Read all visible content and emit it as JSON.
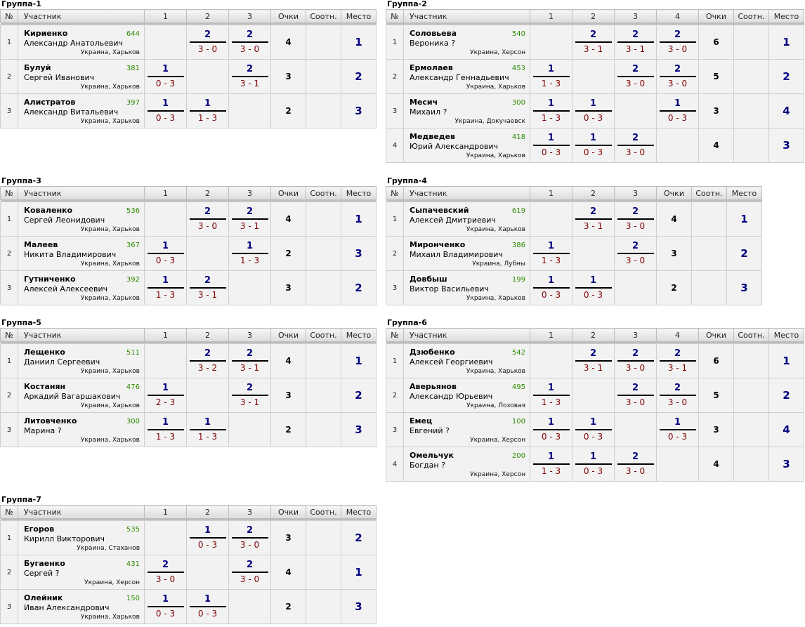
{
  "headers": {
    "num": "№",
    "participant": "Участник",
    "points": "Очки",
    "ratio": "Соотн.",
    "place": "Место"
  },
  "groups": [
    {
      "title": "Группа-1",
      "cols": [
        "1",
        "2",
        "3"
      ],
      "players": [
        {
          "num": "1",
          "last": "Кириенко",
          "first": "Александр Анатольевич",
          "rating": "644",
          "location": "Украина, Харьков",
          "results": [
            null,
            {
              "pts": "2",
              "score": "3 - 0"
            },
            {
              "pts": "2",
              "score": "3 - 0"
            }
          ],
          "points": "4",
          "place": "1"
        },
        {
          "num": "2",
          "last": "Булуй",
          "first": "Сергей Иванович",
          "rating": "381",
          "location": "Украина, Харьков",
          "results": [
            {
              "pts": "1",
              "score": "0 - 3"
            },
            null,
            {
              "pts": "2",
              "score": "3 - 1"
            }
          ],
          "points": "3",
          "place": "2"
        },
        {
          "num": "3",
          "last": "Алистратов",
          "first": "Александр Витальевич",
          "rating": "397",
          "location": "Украина, Харьков",
          "results": [
            {
              "pts": "1",
              "score": "0 - 3"
            },
            {
              "pts": "1",
              "score": "1 - 3"
            },
            null
          ],
          "points": "2",
          "place": "3"
        }
      ]
    },
    {
      "title": "Группа-2",
      "cols": [
        "1",
        "2",
        "3",
        "4"
      ],
      "players": [
        {
          "num": "1",
          "last": "Соловьева",
          "first": "Вероника ?",
          "rating": "540",
          "location": "Украина, Херсон",
          "results": [
            null,
            {
              "pts": "2",
              "score": "3 - 1"
            },
            {
              "pts": "2",
              "score": "3 - 1"
            },
            {
              "pts": "2",
              "score": "3 - 0"
            }
          ],
          "points": "6",
          "place": "1"
        },
        {
          "num": "2",
          "last": "Ермолаев",
          "first": "Александр Геннадьевич",
          "rating": "453",
          "location": "Украина, Харьков",
          "results": [
            {
              "pts": "1",
              "score": "1 - 3"
            },
            null,
            {
              "pts": "2",
              "score": "3 - 0"
            },
            {
              "pts": "2",
              "score": "3 - 0"
            }
          ],
          "points": "5",
          "place": "2"
        },
        {
          "num": "3",
          "last": "Месич",
          "first": "Михаил ?",
          "rating": "300",
          "location": "Украина, Докучаевск",
          "results": [
            {
              "pts": "1",
              "score": "1 - 3"
            },
            {
              "pts": "1",
              "score": "0 - 3"
            },
            null,
            {
              "pts": "1",
              "score": "0 - 3"
            }
          ],
          "points": "3",
          "place": "4"
        },
        {
          "num": "4",
          "last": "Медведев",
          "first": "Юрий Александрович",
          "rating": "418",
          "location": "Украина, Харьков",
          "results": [
            {
              "pts": "1",
              "score": "0 - 3"
            },
            {
              "pts": "1",
              "score": "0 - 3"
            },
            {
              "pts": "2",
              "score": "3 - 0"
            },
            null
          ],
          "points": "4",
          "place": "3"
        }
      ]
    },
    {
      "title": "Группа-3",
      "cols": [
        "1",
        "2",
        "3"
      ],
      "players": [
        {
          "num": "1",
          "last": "Коваленко",
          "first": "Сергей Леонидович",
          "rating": "536",
          "location": "Украина, Харьков",
          "results": [
            null,
            {
              "pts": "2",
              "score": "3 - 0"
            },
            {
              "pts": "2",
              "score": "3 - 1"
            }
          ],
          "points": "4",
          "place": "1"
        },
        {
          "num": "2",
          "last": "Малеев",
          "first": "Никита Владимирович",
          "rating": "367",
          "location": "Украина, Харьков",
          "results": [
            {
              "pts": "1",
              "score": "0 - 3"
            },
            null,
            {
              "pts": "1",
              "score": "1 - 3"
            }
          ],
          "points": "2",
          "place": "3"
        },
        {
          "num": "3",
          "last": "Гутниченко",
          "first": "Алексей Алексеевич",
          "rating": "392",
          "location": "Украина, Харьков",
          "results": [
            {
              "pts": "1",
              "score": "1 - 3"
            },
            {
              "pts": "2",
              "score": "3 - 1"
            },
            null
          ],
          "points": "3",
          "place": "2"
        }
      ]
    },
    {
      "title": "Группа-4",
      "cols": [
        "1",
        "2",
        "3"
      ],
      "players": [
        {
          "num": "1",
          "last": "Сыпачевский",
          "first": "Алексей Дмитриевич",
          "rating": "619",
          "location": "Украина, Харьков",
          "results": [
            null,
            {
              "pts": "2",
              "score": "3 - 1"
            },
            {
              "pts": "2",
              "score": "3 - 0"
            }
          ],
          "points": "4",
          "place": "1"
        },
        {
          "num": "2",
          "last": "Миронченко",
          "first": "Михаил Владимирович",
          "rating": "386",
          "location": "Украина, Лубны",
          "results": [
            {
              "pts": "1",
              "score": "1 - 3"
            },
            null,
            {
              "pts": "2",
              "score": "3 - 0"
            }
          ],
          "points": "3",
          "place": "2"
        },
        {
          "num": "3",
          "last": "Довбыш",
          "first": "Виктор Васильевич",
          "rating": "199",
          "location": "Украина, Харьков",
          "results": [
            {
              "pts": "1",
              "score": "0 - 3"
            },
            {
              "pts": "1",
              "score": "0 - 3"
            },
            null
          ],
          "points": "2",
          "place": "3"
        }
      ]
    },
    {
      "title": "Группа-5",
      "cols": [
        "1",
        "2",
        "3"
      ],
      "players": [
        {
          "num": "1",
          "last": "Лещенко",
          "first": "Даниил Сергеевич",
          "rating": "511",
          "location": "Украина, Харьков",
          "results": [
            null,
            {
              "pts": "2",
              "score": "3 - 2"
            },
            {
              "pts": "2",
              "score": "3 - 1"
            }
          ],
          "points": "4",
          "place": "1"
        },
        {
          "num": "2",
          "last": "Костанян",
          "first": "Аркадий Вагаршакович",
          "rating": "476",
          "location": "Украина, Харьков",
          "results": [
            {
              "pts": "1",
              "score": "2 - 3"
            },
            null,
            {
              "pts": "2",
              "score": "3 - 1"
            }
          ],
          "points": "3",
          "place": "2"
        },
        {
          "num": "3",
          "last": "Литовченко",
          "first": "Марина ?",
          "rating": "300",
          "location": "Украина, Харьков",
          "results": [
            {
              "pts": "1",
              "score": "1 - 3"
            },
            {
              "pts": "1",
              "score": "1 - 3"
            },
            null
          ],
          "points": "2",
          "place": "3"
        }
      ]
    },
    {
      "title": "Группа-6",
      "cols": [
        "1",
        "2",
        "3",
        "4"
      ],
      "players": [
        {
          "num": "1",
          "last": "Дзюбенко",
          "first": "Алексей Георгиевич",
          "rating": "542",
          "location": "Украина, Харьков",
          "results": [
            null,
            {
              "pts": "2",
              "score": "3 - 1"
            },
            {
              "pts": "2",
              "score": "3 - 0"
            },
            {
              "pts": "2",
              "score": "3 - 1"
            }
          ],
          "points": "6",
          "place": "1"
        },
        {
          "num": "2",
          "last": "Аверьянов",
          "first": "Александр Юрьевич",
          "rating": "495",
          "location": "Украина, Лозовая",
          "results": [
            {
              "pts": "1",
              "score": "1 - 3"
            },
            null,
            {
              "pts": "2",
              "score": "3 - 0"
            },
            {
              "pts": "2",
              "score": "3 - 0"
            }
          ],
          "points": "5",
          "place": "2"
        },
        {
          "num": "3",
          "last": "Емец",
          "first": "Евгений ?",
          "rating": "100",
          "location": "Украина, Херсон",
          "results": [
            {
              "pts": "1",
              "score": "0 - 3"
            },
            {
              "pts": "1",
              "score": "0 - 3"
            },
            null,
            {
              "pts": "1",
              "score": "0 - 3"
            }
          ],
          "points": "3",
          "place": "4"
        },
        {
          "num": "4",
          "last": "Омельчук",
          "first": "Богдан ?",
          "rating": "200",
          "location": "Украина, Херсон",
          "results": [
            {
              "pts": "1",
              "score": "1 - 3"
            },
            {
              "pts": "1",
              "score": "0 - 3"
            },
            {
              "pts": "2",
              "score": "3 - 0"
            },
            null
          ],
          "points": "4",
          "place": "3"
        }
      ]
    },
    {
      "title": "Группа-7",
      "cols": [
        "1",
        "2",
        "3"
      ],
      "players": [
        {
          "num": "1",
          "last": "Егоров",
          "first": "Кирилл Викторович",
          "rating": "535",
          "location": "Украина, Стаханов",
          "results": [
            null,
            {
              "pts": "1",
              "score": "0 - 3"
            },
            {
              "pts": "2",
              "score": "3 - 0"
            }
          ],
          "points": "3",
          "place": "2"
        },
        {
          "num": "2",
          "last": "Бугаенко",
          "first": "Сергей ?",
          "rating": "431",
          "location": "Украина, Херсон",
          "results": [
            {
              "pts": "2",
              "score": "3 - 0"
            },
            null,
            {
              "pts": "2",
              "score": "3 - 0"
            }
          ],
          "points": "4",
          "place": "1"
        },
        {
          "num": "3",
          "last": "Олейник",
          "first": "Иван Александрович",
          "rating": "150",
          "location": "Украина, Харьков",
          "results": [
            {
              "pts": "1",
              "score": "0 - 3"
            },
            {
              "pts": "1",
              "score": "0 - 3"
            },
            null
          ],
          "points": "2",
          "place": "3"
        }
      ]
    }
  ]
}
